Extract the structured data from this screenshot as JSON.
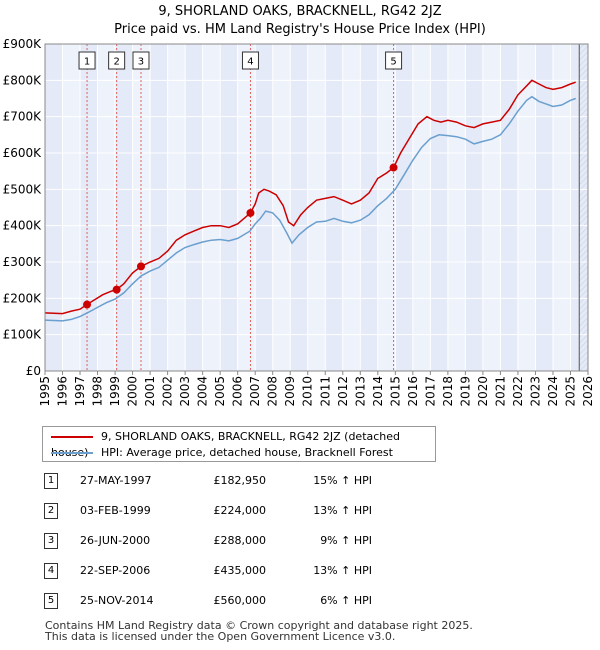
{
  "title_line1": "9, SHORLAND OAKS, BRACKNELL, RG42 2JZ",
  "title_line2": "Price paid vs. HM Land Registry's House Price Index (HPI)",
  "chart_data": {
    "type": "line",
    "title": "9, SHORLAND OAKS, BRACKNELL, RG42 2JZ — Price paid vs. HM Land Registry's House Price Index (HPI)",
    "xlabel": "",
    "ylabel": "",
    "xlim": [
      1995,
      2026
    ],
    "ylim": [
      0,
      900000
    ],
    "grid": true,
    "x_ticks": [
      1995,
      1996,
      1997,
      1998,
      1999,
      2000,
      2001,
      2002,
      2003,
      2004,
      2005,
      2006,
      2007,
      2008,
      2009,
      2010,
      2011,
      2012,
      2013,
      2014,
      2015,
      2016,
      2017,
      2018,
      2019,
      2020,
      2021,
      2022,
      2023,
      2024,
      2025,
      2026
    ],
    "x_tick_labels": [
      "1995",
      "1996",
      "1997",
      "1998",
      "1999",
      "2000",
      "2001",
      "2002",
      "2003",
      "2004",
      "2005",
      "2006",
      "2007",
      "2008",
      "2009",
      "2010",
      "2011",
      "2012",
      "2013",
      "2014",
      "2015",
      "2016",
      "2017",
      "2018",
      "2019",
      "2020",
      "2021",
      "2022",
      "2023",
      "2024",
      "2025",
      "2026"
    ],
    "y_ticks": [
      0,
      100000,
      200000,
      300000,
      400000,
      500000,
      600000,
      700000,
      800000,
      900000
    ],
    "y_tick_labels": [
      "£0",
      "£100K",
      "£200K",
      "£300K",
      "£400K",
      "£500K",
      "£600K",
      "£700K",
      "£800K",
      "£900K"
    ],
    "series": [
      {
        "name": "9, SHORLAND OAKS, BRACKNELL, RG42 2JZ (detached house)",
        "color": "#cc0000",
        "points": [
          [
            1995.0,
            160000
          ],
          [
            1996.0,
            158000
          ],
          [
            1996.5,
            165000
          ],
          [
            1997.0,
            170000
          ],
          [
            1997.4,
            182950
          ],
          [
            1997.8,
            195000
          ],
          [
            1998.3,
            210000
          ],
          [
            1998.8,
            220000
          ],
          [
            1999.09,
            224000
          ],
          [
            1999.5,
            240000
          ],
          [
            2000.0,
            270000
          ],
          [
            2000.48,
            288000
          ],
          [
            2001.0,
            300000
          ],
          [
            2001.5,
            310000
          ],
          [
            2002.0,
            330000
          ],
          [
            2002.5,
            360000
          ],
          [
            2003.0,
            375000
          ],
          [
            2003.5,
            385000
          ],
          [
            2004.0,
            395000
          ],
          [
            2004.5,
            400000
          ],
          [
            2005.0,
            400000
          ],
          [
            2005.5,
            395000
          ],
          [
            2006.0,
            405000
          ],
          [
            2006.73,
            435000
          ],
          [
            2007.0,
            460000
          ],
          [
            2007.2,
            490000
          ],
          [
            2007.5,
            500000
          ],
          [
            2007.8,
            495000
          ],
          [
            2008.2,
            485000
          ],
          [
            2008.6,
            455000
          ],
          [
            2008.9,
            410000
          ],
          [
            2009.2,
            400000
          ],
          [
            2009.6,
            430000
          ],
          [
            2010.0,
            450000
          ],
          [
            2010.5,
            470000
          ],
          [
            2011.0,
            475000
          ],
          [
            2011.5,
            480000
          ],
          [
            2012.0,
            470000
          ],
          [
            2012.5,
            460000
          ],
          [
            2013.0,
            470000
          ],
          [
            2013.5,
            490000
          ],
          [
            2014.0,
            530000
          ],
          [
            2014.5,
            545000
          ],
          [
            2014.9,
            560000
          ],
          [
            2015.3,
            600000
          ],
          [
            2015.8,
            640000
          ],
          [
            2016.3,
            680000
          ],
          [
            2016.8,
            700000
          ],
          [
            2017.2,
            690000
          ],
          [
            2017.6,
            685000
          ],
          [
            2018.0,
            690000
          ],
          [
            2018.5,
            685000
          ],
          [
            2019.0,
            675000
          ],
          [
            2019.5,
            670000
          ],
          [
            2020.0,
            680000
          ],
          [
            2020.5,
            685000
          ],
          [
            2021.0,
            690000
          ],
          [
            2021.5,
            720000
          ],
          [
            2022.0,
            760000
          ],
          [
            2022.5,
            785000
          ],
          [
            2022.8,
            800000
          ],
          [
            2023.2,
            790000
          ],
          [
            2023.6,
            780000
          ],
          [
            2024.0,
            775000
          ],
          [
            2024.5,
            780000
          ],
          [
            2025.0,
            790000
          ],
          [
            2025.3,
            795000
          ]
        ]
      },
      {
        "name": "HPI: Average price, detached house, Bracknell Forest",
        "color": "#6a9fcf",
        "points": [
          [
            1995.0,
            140000
          ],
          [
            1996.0,
            138000
          ],
          [
            1996.5,
            142000
          ],
          [
            1997.0,
            150000
          ],
          [
            1997.5,
            162000
          ],
          [
            1998.0,
            175000
          ],
          [
            1998.5,
            188000
          ],
          [
            1999.0,
            198000
          ],
          [
            1999.5,
            215000
          ],
          [
            2000.0,
            240000
          ],
          [
            2000.5,
            262000
          ],
          [
            2001.0,
            275000
          ],
          [
            2001.5,
            285000
          ],
          [
            2002.0,
            305000
          ],
          [
            2002.5,
            325000
          ],
          [
            2003.0,
            340000
          ],
          [
            2003.5,
            348000
          ],
          [
            2004.0,
            355000
          ],
          [
            2004.5,
            360000
          ],
          [
            2005.0,
            362000
          ],
          [
            2005.5,
            358000
          ],
          [
            2006.0,
            365000
          ],
          [
            2006.7,
            385000
          ],
          [
            2007.0,
            405000
          ],
          [
            2007.3,
            420000
          ],
          [
            2007.6,
            440000
          ],
          [
            2008.0,
            435000
          ],
          [
            2008.4,
            415000
          ],
          [
            2008.8,
            380000
          ],
          [
            2009.1,
            352000
          ],
          [
            2009.5,
            375000
          ],
          [
            2010.0,
            395000
          ],
          [
            2010.5,
            410000
          ],
          [
            2011.0,
            412000
          ],
          [
            2011.5,
            420000
          ],
          [
            2012.0,
            412000
          ],
          [
            2012.5,
            408000
          ],
          [
            2013.0,
            415000
          ],
          [
            2013.5,
            430000
          ],
          [
            2014.0,
            455000
          ],
          [
            2014.5,
            475000
          ],
          [
            2015.0,
            500000
          ],
          [
            2015.5,
            540000
          ],
          [
            2016.0,
            580000
          ],
          [
            2016.5,
            615000
          ],
          [
            2017.0,
            640000
          ],
          [
            2017.5,
            650000
          ],
          [
            2018.0,
            648000
          ],
          [
            2018.5,
            645000
          ],
          [
            2019.0,
            638000
          ],
          [
            2019.5,
            625000
          ],
          [
            2020.0,
            632000
          ],
          [
            2020.5,
            638000
          ],
          [
            2021.0,
            650000
          ],
          [
            2021.5,
            680000
          ],
          [
            2022.0,
            715000
          ],
          [
            2022.5,
            745000
          ],
          [
            2022.8,
            755000
          ],
          [
            2023.2,
            742000
          ],
          [
            2023.6,
            735000
          ],
          [
            2024.0,
            728000
          ],
          [
            2024.5,
            732000
          ],
          [
            2025.0,
            745000
          ],
          [
            2025.3,
            750000
          ]
        ]
      }
    ],
    "sales": [
      {
        "label": "1",
        "x": 1997.4,
        "y": 182950
      },
      {
        "label": "2",
        "x": 1999.09,
        "y": 224000
      },
      {
        "label": "3",
        "x": 2000.48,
        "y": 288000
      },
      {
        "label": "4",
        "x": 2006.73,
        "y": 435000
      },
      {
        "label": "5",
        "x": 2014.9,
        "y": 560000
      }
    ],
    "forecast_start": 2025.5
  },
  "legend": {
    "property": "9, SHORLAND OAKS, BRACKNELL, RG42 2JZ (detached house)",
    "hpi": "HPI: Average price, detached house, Bracknell Forest"
  },
  "sales_table": [
    {
      "num": "1",
      "date": "27-MAY-1997",
      "price": "£182,950",
      "hpi": "15% ↑ HPI"
    },
    {
      "num": "2",
      "date": "03-FEB-1999",
      "price": "£224,000",
      "hpi": "13% ↑ HPI"
    },
    {
      "num": "3",
      "date": "26-JUN-2000",
      "price": "£288,000",
      "hpi": "9% ↑ HPI"
    },
    {
      "num": "4",
      "date": "22-SEP-2006",
      "price": "£435,000",
      "hpi": "13% ↑ HPI"
    },
    {
      "num": "5",
      "date": "25-NOV-2014",
      "price": "£560,000",
      "hpi": "6% ↑ HPI"
    }
  ],
  "footer": {
    "line1": "Contains HM Land Registry data © Crown copyright and database right 2025.",
    "line2": "This data is licensed under the Open Government Licence v3.0."
  }
}
